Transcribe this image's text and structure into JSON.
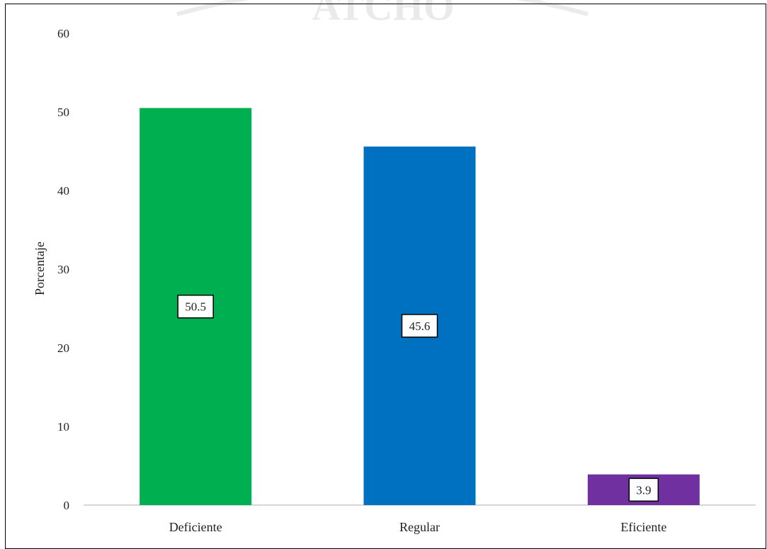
{
  "chart_data": {
    "type": "bar",
    "categories": [
      "Deficiente",
      "Regular",
      "Eficiente"
    ],
    "values": [
      50.5,
      45.6,
      3.9
    ],
    "data_labels": [
      "50.5",
      "45.6",
      "3.9"
    ],
    "colors": [
      "#00B050",
      "#0070C0",
      "#7030A0"
    ],
    "title": "",
    "xlabel": "",
    "ylabel": "Porcentaje",
    "ylim": [
      0,
      60
    ],
    "yticks": [
      "0",
      "10",
      "20",
      "30",
      "40",
      "50",
      "60"
    ],
    "grid": false,
    "legend": "none"
  }
}
